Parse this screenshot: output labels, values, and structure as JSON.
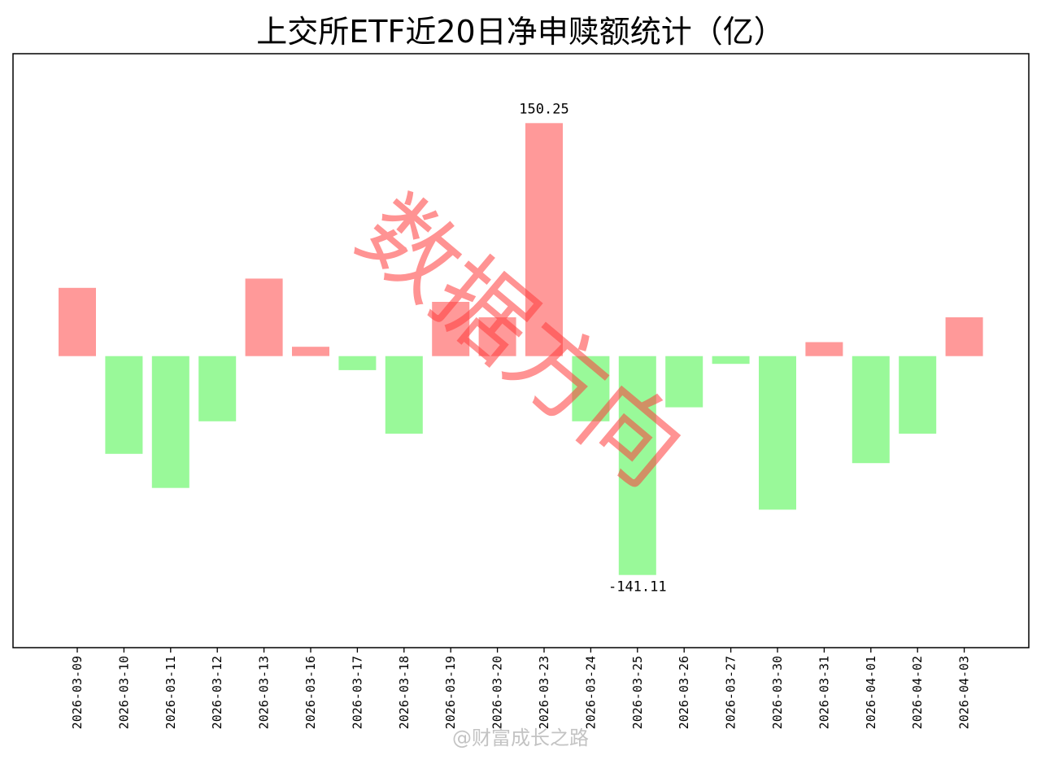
{
  "chart_data": {
    "type": "bar",
    "title": "上交所ETF近20日净申赎额统计（亿）",
    "xlabel": "",
    "ylabel": "",
    "categories": [
      "2026-03-09",
      "2026-03-10",
      "2026-03-11",
      "2026-03-12",
      "2026-03-13",
      "2026-03-16",
      "2026-03-17",
      "2026-03-18",
      "2026-03-19",
      "2026-03-20",
      "2026-03-23",
      "2026-03-24",
      "2026-03-25",
      "2026-03-26",
      "2026-03-27",
      "2026-03-30",
      "2026-03-31",
      "2026-04-01",
      "2026-04-02",
      "2026-04-03"
    ],
    "values": [
      44,
      -63,
      -85,
      -42,
      50,
      6,
      -9,
      -50,
      35,
      25,
      150.25,
      -42,
      -141.11,
      -33,
      -5,
      -99,
      9,
      -69,
      -50,
      25
    ],
    "ylim": [
      -188,
      195
    ],
    "grid": false,
    "legend": "none",
    "positive_color": "#ff9999",
    "negative_color": "#99f999",
    "annotations": [
      {
        "category": "2026-03-23",
        "text": "150.25"
      },
      {
        "category": "2026-03-25",
        "text": "-141.11"
      }
    ]
  },
  "watermark": {
    "text": "数据方向",
    "color": "#ff3b3b"
  },
  "credit": {
    "text": "@财富成长之路"
  }
}
